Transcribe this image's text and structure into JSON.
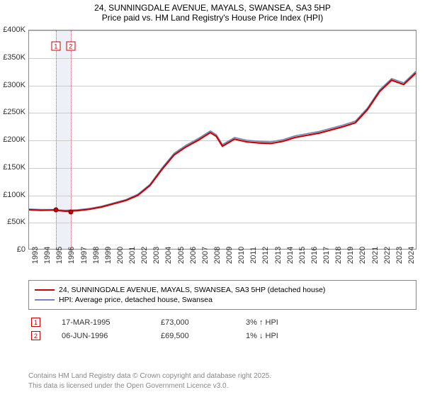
{
  "title_line1": "24, SUNNINGDALE AVENUE, MAYALS, SWANSEA, SA3 5HP",
  "title_line2": "Price paid vs. HM Land Registry's House Price Index (HPI)",
  "chart": {
    "type": "line",
    "x_min_year": 1993,
    "x_max_year": 2025,
    "y_min": 0,
    "y_max": 400000,
    "y_ticks": [
      0,
      50000,
      100000,
      150000,
      200000,
      250000,
      300000,
      350000,
      400000
    ],
    "y_tick_labels": [
      "£0",
      "£50K",
      "£100K",
      "£150K",
      "£200K",
      "£250K",
      "£300K",
      "£350K",
      "£400K"
    ],
    "x_ticks": [
      1993,
      1994,
      1995,
      1996,
      1997,
      1998,
      1999,
      2000,
      2001,
      2002,
      2003,
      2004,
      2005,
      2006,
      2007,
      2008,
      2009,
      2010,
      2011,
      2012,
      2013,
      2014,
      2015,
      2016,
      2017,
      2018,
      2019,
      2020,
      2021,
      2022,
      2023,
      2024
    ],
    "grid_color": "#cccccc",
    "series": [
      {
        "name": "HPI: Average price, detached house, Swansea",
        "color": "#6f87b8",
        "width": 1.6,
        "data": [
          [
            1993,
            73000
          ],
          [
            1994,
            72000
          ],
          [
            1995,
            72000
          ],
          [
            1996,
            70500
          ],
          [
            1997,
            71500
          ],
          [
            1998,
            74000
          ],
          [
            1999,
            78000
          ],
          [
            2000,
            84000
          ],
          [
            2001,
            90000
          ],
          [
            2002,
            100000
          ],
          [
            2003,
            118000
          ],
          [
            2004,
            148000
          ],
          [
            2005,
            175000
          ],
          [
            2006,
            190000
          ],
          [
            2007,
            202000
          ],
          [
            2008,
            216000
          ],
          [
            2008.5,
            209000
          ],
          [
            2009,
            191000
          ],
          [
            2010,
            204000
          ],
          [
            2011,
            199000
          ],
          [
            2012,
            197000
          ],
          [
            2013,
            196000
          ],
          [
            2014,
            200000
          ],
          [
            2015,
            207000
          ],
          [
            2016,
            211000
          ],
          [
            2017,
            215000
          ],
          [
            2018,
            221000
          ],
          [
            2019,
            227000
          ],
          [
            2020,
            234000
          ],
          [
            2021,
            258000
          ],
          [
            2022,
            291000
          ],
          [
            2023,
            312000
          ],
          [
            2024,
            304000
          ],
          [
            2025,
            325000
          ]
        ]
      },
      {
        "name": "24, SUNNINGDALE AVENUE, MAYALS, SWANSEA, SA3 5HP (detached house)",
        "color": "#cc0000",
        "width": 2.2,
        "data": [
          [
            1993,
            71500
          ],
          [
            1994,
            70500
          ],
          [
            1995,
            71000
          ],
          [
            1996,
            69000
          ],
          [
            1997,
            70000
          ],
          [
            1998,
            72500
          ],
          [
            1999,
            76500
          ],
          [
            2000,
            82500
          ],
          [
            2001,
            88500
          ],
          [
            2002,
            98000
          ],
          [
            2003,
            116000
          ],
          [
            2004,
            145500
          ],
          [
            2005,
            172000
          ],
          [
            2006,
            187000
          ],
          [
            2007,
            199000
          ],
          [
            2008,
            213000
          ],
          [
            2008.5,
            206000
          ],
          [
            2009,
            188000
          ],
          [
            2010,
            201000
          ],
          [
            2011,
            196000
          ],
          [
            2012,
            194000
          ],
          [
            2013,
            193000
          ],
          [
            2014,
            197000
          ],
          [
            2015,
            204000
          ],
          [
            2016,
            208000
          ],
          [
            2017,
            212000
          ],
          [
            2018,
            218000
          ],
          [
            2019,
            224000
          ],
          [
            2020,
            231000
          ],
          [
            2021,
            255000
          ],
          [
            2022,
            288000
          ],
          [
            2023,
            309000
          ],
          [
            2024,
            301000
          ],
          [
            2025,
            322000
          ]
        ]
      }
    ],
    "vbands": [
      {
        "from": 1995.21,
        "to": 1996.43,
        "color": "#eef0f8"
      }
    ],
    "vlines": [
      {
        "at": 1995.21,
        "color": "#c06070"
      },
      {
        "at": 1996.43,
        "color": "#c06070"
      }
    ],
    "sale_markers": [
      {
        "n": "1",
        "year": 1995.21,
        "value": 73000,
        "color": "#cc0000"
      },
      {
        "n": "2",
        "year": 1996.43,
        "value": 69500,
        "color": "#cc0000"
      }
    ]
  },
  "legend": {
    "s1": {
      "color": "#cc0000",
      "label": "24, SUNNINGDALE AVENUE, MAYALS, SWANSEA, SA3 5HP (detached house)"
    },
    "s2": {
      "color": "#6f87b8",
      "label": "HPI: Average price, detached house, Swansea"
    }
  },
  "sales": [
    {
      "n": "1",
      "color": "#cc0000",
      "date": "17-MAR-1995",
      "price": "£73,000",
      "hpi": "3% ↑ HPI"
    },
    {
      "n": "2",
      "color": "#cc0000",
      "date": "06-JUN-1996",
      "price": "£69,500",
      "hpi": "1% ↓ HPI"
    }
  ],
  "footer_l1": "Contains HM Land Registry data © Crown copyright and database right 2025.",
  "footer_l2": "This data is licensed under the Open Government Licence v3.0."
}
